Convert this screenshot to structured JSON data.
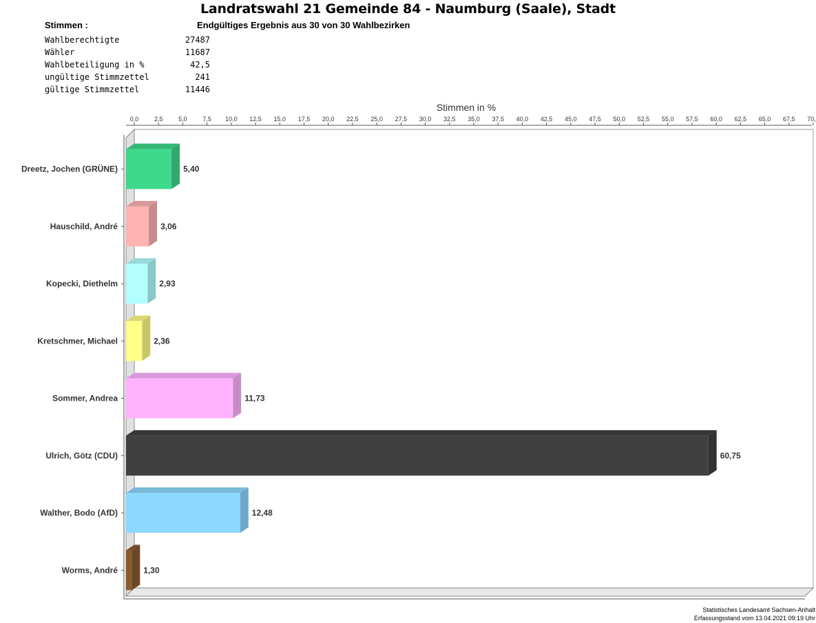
{
  "header": {
    "title": "Landratswahl 21 Gemeinde 84 - Naumburg (Saale), Stadt",
    "stimmen_label": "Stimmen   :",
    "subtitle": "Endgültiges Ergebnis aus 30 von 30 Wahlbezirken"
  },
  "stats": [
    {
      "label": "Wahlberechtigte",
      "value": "27487"
    },
    {
      "label": "Wähler",
      "value": "11687"
    },
    {
      "label": "Wahlbeteiligung in %",
      "value": "42,5"
    },
    {
      "label": "ungültige Stimmzettel",
      "value": "241"
    },
    {
      "label": "gültige Stimmzettel",
      "value": "11446"
    }
  ],
  "chart_data": {
    "type": "bar",
    "orientation": "horizontal",
    "xlabel": "Stimmen in %",
    "xlim": [
      0,
      70
    ],
    "ticks": [
      "0,0",
      "2,5",
      "5,0",
      "7,5",
      "10,0",
      "12,5",
      "15,0",
      "17,5",
      "20,0",
      "22,5",
      "25,0",
      "27,5",
      "30,0",
      "32,5",
      "35,0",
      "37,5",
      "40,0",
      "42,5",
      "45,0",
      "47,5",
      "50,0",
      "52,5",
      "55,0",
      "57,5",
      "60,0",
      "62,5",
      "65,0",
      "67,5",
      "70,0"
    ],
    "categories": [
      "Dreetz, Jochen (GRÜNE)",
      "Hauschild, André",
      "Kopecki, Diethelm",
      "Kretschmer, Michael",
      "Sommer, Andrea",
      "Ulrich, Götz (CDU)",
      "Walther, Bodo (AfD)",
      "Worms, André"
    ],
    "values": [
      5.4,
      3.06,
      2.93,
      2.36,
      11.73,
      60.75,
      12.48,
      1.3
    ],
    "value_labels": [
      "5,40",
      "3,06",
      "2,93",
      "2,36",
      "11,73",
      "60,75",
      "12,48",
      "1,30"
    ],
    "colors": [
      "#3fd98c",
      "#ffb3b3",
      "#b3ffff",
      "#ffff88",
      "#ffb3ff",
      "#404040",
      "#8dd8ff",
      "#8b5a30"
    ],
    "grid": false
  },
  "footer": {
    "line1": "Statistisches Landesamt Sachsen-Anhalt",
    "line2": "Erfassungsstand vom 13.04.2021 09:19 Uhr"
  }
}
